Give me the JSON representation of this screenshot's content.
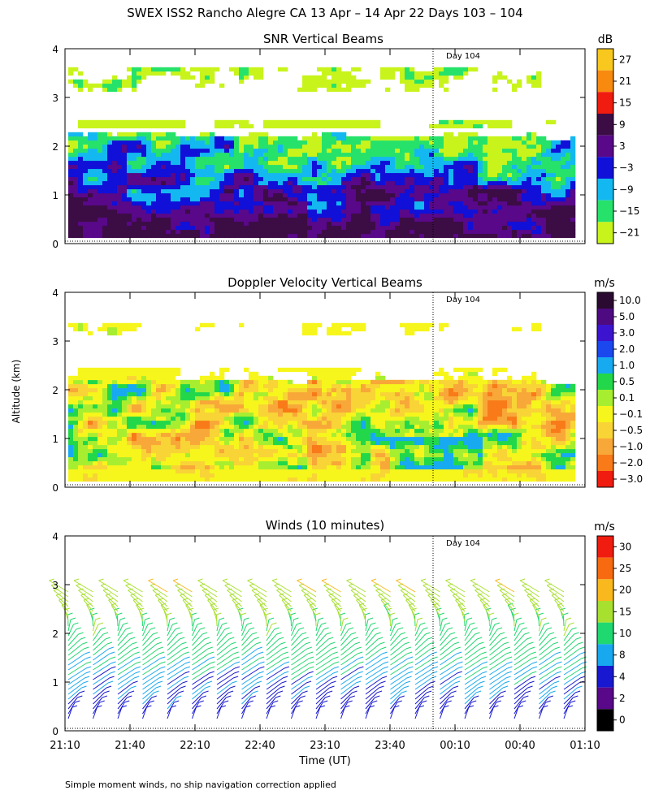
{
  "figure": {
    "title": "SWEX ISS2 Rancho Alegre CA  13 Apr – 14 Apr 22 Days 103 – 104",
    "ylabel": "Altitude (km)",
    "xlabel": "Time (UT)",
    "footnote": "Simple moment winds, no ship navigation correction applied"
  },
  "chart_data": [
    {
      "type": "heatmap",
      "title": "SNR Vertical Beams",
      "units": "dB",
      "xlabel": "Time (UT)",
      "ylabel": "Altitude (km)",
      "xlim": [
        "21:10",
        "01:10"
      ],
      "ylim": [
        0,
        4
      ],
      "yticks": [
        "0",
        "1",
        "2",
        "3",
        "4"
      ],
      "day_marker": {
        "label": "Day 104",
        "time": "00:00"
      },
      "colorbar_labels": [
        "27",
        "21",
        "15",
        "9",
        "3",
        "−3",
        "−9",
        "−15",
        "−21"
      ],
      "colorbar_colors": [
        "#f8c81e",
        "#f88a10",
        "#f01c10",
        "#3c0c44",
        "#580888",
        "#1010d8",
        "#14b8f0",
        "#26e26a",
        "#c8f41c"
      ]
    },
    {
      "type": "heatmap",
      "title": "Doppler Velocity Vertical Beams",
      "units": "m/s",
      "xlabel": "Time (UT)",
      "ylabel": "Altitude (km)",
      "xlim": [
        "21:10",
        "01:10"
      ],
      "ylim": [
        0,
        4
      ],
      "yticks": [
        "0",
        "1",
        "2",
        "3",
        "4"
      ],
      "day_marker": {
        "label": "Day 104",
        "time": "00:00"
      },
      "colorbar_labels": [
        "10.0",
        "5.0",
        "3.0",
        "2.0",
        "1.0",
        "0.5",
        "0.1",
        "−0.1",
        "−0.5",
        "−1.0",
        "−2.0",
        "−3.0"
      ],
      "colorbar_colors": [
        "#2a0a30",
        "#4e0a80",
        "#3c14d0",
        "#1a48ee",
        "#18aaf0",
        "#22d84a",
        "#a8ee30",
        "#f6f61c",
        "#f8d436",
        "#f8a838",
        "#f87a18",
        "#f01c10"
      ]
    },
    {
      "type": "wind_barbs",
      "title": "Winds (10 minutes)",
      "units": "m/s",
      "xlabel": "Time (UT)",
      "ylabel": "Altitude (km)",
      "xlim": [
        "21:10",
        "01:10"
      ],
      "ylim": [
        0,
        4
      ],
      "yticks": [
        "0",
        "1",
        "2",
        "3",
        "4"
      ],
      "xticks": [
        "21:10",
        "21:40",
        "22:10",
        "22:40",
        "23:10",
        "23:40",
        "00:10",
        "00:40",
        "01:10"
      ],
      "day_marker": {
        "label": "Day 104",
        "time": "00:00"
      },
      "colorbar_labels": [
        "30",
        "25",
        "20",
        "15",
        "10",
        "8",
        "4",
        "2",
        "0"
      ],
      "colorbar_colors": [
        "#f01c10",
        "#f86a10",
        "#f8b81e",
        "#a8e030",
        "#20d870",
        "#18a8f0",
        "#1818d0",
        "#580888",
        "#000000"
      ]
    }
  ]
}
